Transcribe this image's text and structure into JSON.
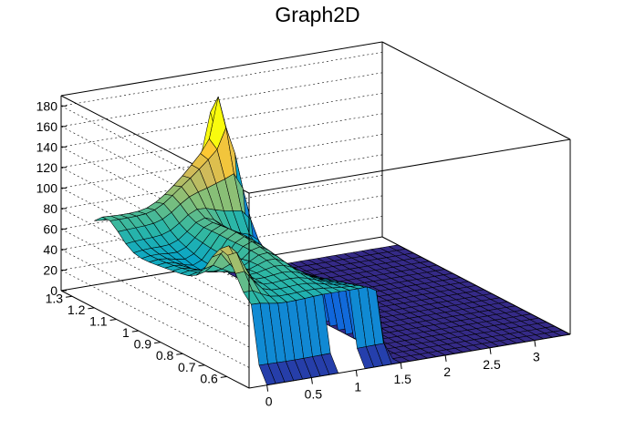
{
  "chart_data": {
    "type": "surface",
    "title": "Graph2D",
    "xlabel": "",
    "ylabel": "",
    "zlabel": "",
    "xlim": [
      -0.2,
      3.4
    ],
    "ylim": [
      0.5,
      1.35
    ],
    "zlim": [
      0,
      190
    ],
    "x_ticks": [
      "0",
      "0.5",
      "1",
      "1.5",
      "2",
      "2.5",
      "3"
    ],
    "x_tick_values": [
      0,
      0.5,
      1,
      1.5,
      2,
      2.5,
      3
    ],
    "y_ticks": [
      "0.6",
      "0.7",
      "0.8",
      "0.9",
      "1",
      "1.1",
      "1.2",
      "1.3"
    ],
    "y_tick_values": [
      0.6,
      0.7,
      0.8,
      0.9,
      1.0,
      1.1,
      1.2,
      1.3
    ],
    "z_ticks": [
      "0",
      "20",
      "40",
      "60",
      "80",
      "100",
      "120",
      "140",
      "160",
      "180"
    ],
    "z_tick_values": [
      0,
      20,
      40,
      60,
      80,
      100,
      120,
      140,
      160,
      180
    ],
    "grid": true,
    "colormap": [
      "#352a87",
      "#0f5cdd",
      "#1481d6",
      "#06a4ca",
      "#2eb7a4",
      "#87bf77",
      "#d1bb59",
      "#fec832",
      "#f9fb0e"
    ],
    "surface_features": {
      "plateau": {
        "x": [
          0.0,
          1.35
        ],
        "y": [
          0.55,
          1.25
        ],
        "z_range": [
          50,
          100
        ]
      },
      "back_ridge_peak": {
        "x": 1.3,
        "y": 1.25,
        "z": 150
      },
      "left_bump_peak": {
        "x": 0.05,
        "y": 0.7,
        "z": 105
      },
      "drop_to_zero_beyond_x": 1.45,
      "notch_near_edge": {
        "x": [
          0.75,
          1.05
        ],
        "y": [
          0.5,
          0.58
        ]
      }
    }
  }
}
